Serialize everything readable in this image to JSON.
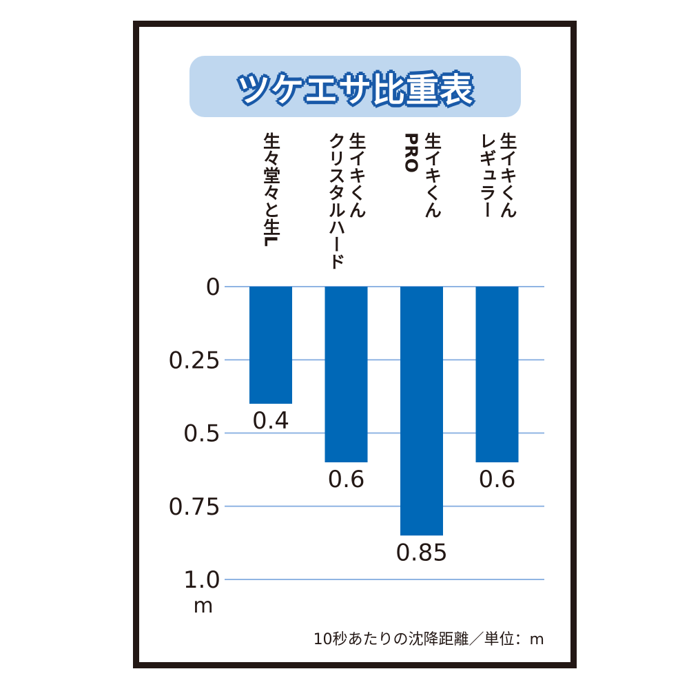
{
  "chart_data": {
    "type": "bar",
    "title": "ツケエサ比重表",
    "categories": [
      [
        "生々堂々と生L"
      ],
      [
        "生イキくん",
        "クリスタルハード"
      ],
      [
        "生イキくん",
        "PRO"
      ],
      [
        "生イキくん",
        "レギュラー"
      ]
    ],
    "values": [
      0.4,
      0.6,
      0.85,
      0.6
    ],
    "value_labels": [
      "0.4",
      "0.6",
      "0.85",
      "0.6"
    ],
    "yticks": [
      "0",
      "0.25",
      "0.5",
      "0.75",
      "1.0"
    ],
    "ylim": [
      0,
      1.0
    ],
    "y_inverted": true,
    "yunit": "m",
    "grid": true,
    "colors": {
      "bar": "#0068b7",
      "grid": "#8fb4e3",
      "text": "#231815"
    }
  },
  "footnote": "10秒あたりの沈降距離／単位：m"
}
